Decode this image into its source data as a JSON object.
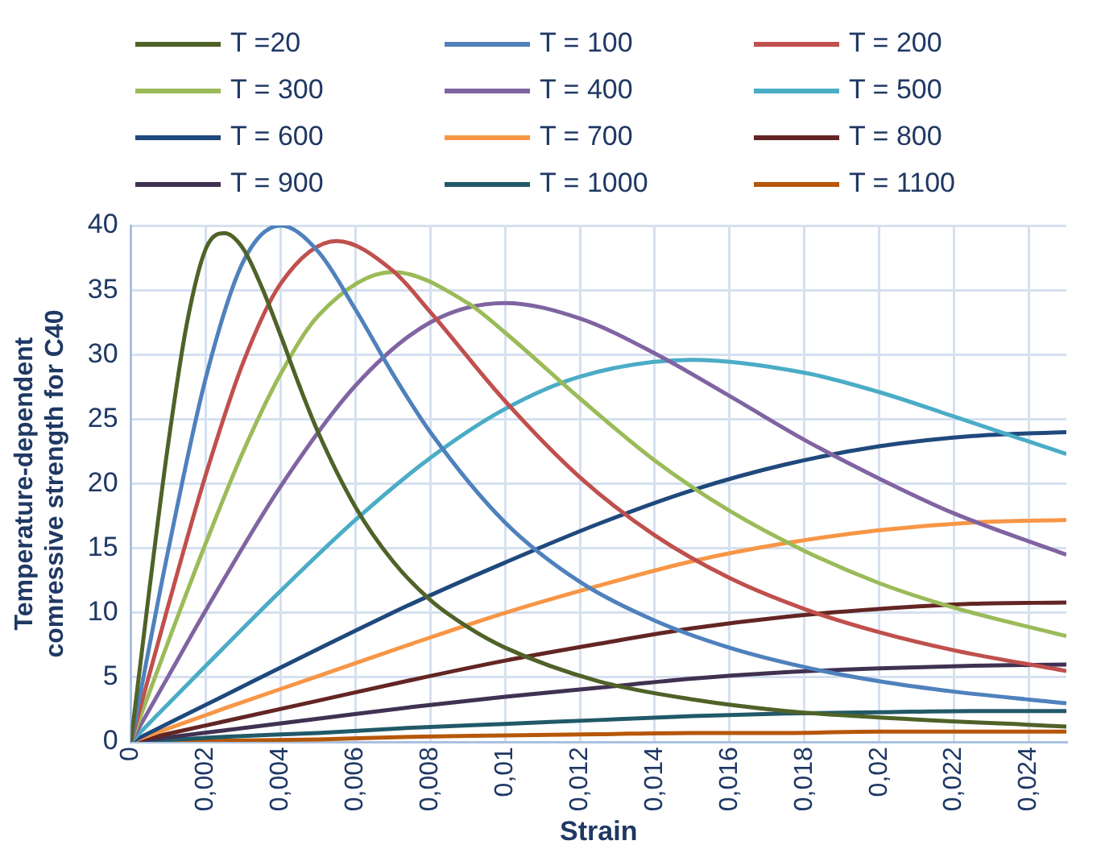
{
  "chart_data": {
    "type": "line",
    "xlabel": "Strain",
    "ylabel": "Temperature-dependent comressive strength for C40",
    "xlim": [
      0,
      0.025
    ],
    "xticks": [
      0,
      {
        "value": 0.002,
        "label": "0,002"
      },
      {
        "value": 0.004,
        "label": "0,004"
      },
      {
        "value": 0.006,
        "label": "0,006"
      },
      {
        "value": 0.008,
        "label": "0,008"
      },
      {
        "value": 0.01,
        "label": "0,01"
      },
      {
        "value": 0.012,
        "label": "0,012"
      },
      {
        "value": 0.014,
        "label": "0,014"
      },
      {
        "value": 0.016,
        "label": "0,016"
      },
      {
        "value": 0.018,
        "label": "0,018"
      },
      {
        "value": 0.02,
        "label": "0,02"
      },
      {
        "value": 0.022,
        "label": "0,022"
      },
      {
        "value": 0.024,
        "label": "0,024"
      }
    ],
    "ylim": [
      0,
      40
    ],
    "yticks": [
      0,
      5,
      10,
      15,
      20,
      25,
      30,
      35,
      40
    ],
    "grid": true,
    "legend": "top",
    "series": [
      {
        "name": "T =20",
        "color": "#4f6228",
        "x": [
          0,
          0.0005,
          0.001,
          0.0015,
          0.002,
          0.0025,
          0.003,
          0.0035,
          0.004,
          0.0045,
          0.005,
          0.006,
          0.007,
          0.008,
          0.009,
          0.01,
          0.0125,
          0.015,
          0.0175,
          0.02,
          0.025
        ],
        "values": [
          0,
          12.0,
          23.2,
          32.5,
          38.2,
          39.4,
          38.2,
          35.2,
          31.5,
          27.6,
          24.0,
          18.2,
          14.0,
          11.0,
          8.9,
          7.3,
          4.7,
          3.3,
          2.4,
          1.9,
          1.2
        ]
      },
      {
        "name": "T = 100",
        "color": "#4f81bd",
        "x": [
          0,
          0.001,
          0.002,
          0.003,
          0.004,
          0.005,
          0.006,
          0.007,
          0.008,
          0.01,
          0.012,
          0.014,
          0.016,
          0.018,
          0.02,
          0.022,
          0.025
        ],
        "values": [
          0,
          14.9,
          28.2,
          37.2,
          40,
          38.0,
          33.5,
          28.5,
          24.0,
          17.0,
          12.4,
          9.4,
          7.3,
          5.8,
          4.7,
          3.9,
          3.0
        ]
      },
      {
        "name": "T = 200",
        "color": "#c0504d",
        "x": [
          0,
          0.001,
          0.002,
          0.003,
          0.004,
          0.0055,
          0.007,
          0.008,
          0.01,
          0.012,
          0.014,
          0.016,
          0.018,
          0.02,
          0.022,
          0.025
        ],
        "values": [
          0,
          10.6,
          20.7,
          29.4,
          35.5,
          38.8,
          36.5,
          33.3,
          26.4,
          20.5,
          16.0,
          12.7,
          10.3,
          8.5,
          7.1,
          5.5
        ]
      },
      {
        "name": "T = 300",
        "color": "#9bbb59",
        "x": [
          0,
          0.001,
          0.002,
          0.003,
          0.004,
          0.005,
          0.007,
          0.009,
          0.01,
          0.012,
          0.014,
          0.016,
          0.018,
          0.02,
          0.022,
          0.025
        ],
        "values": [
          0,
          7.8,
          15.4,
          22.5,
          28.5,
          33.0,
          36.4,
          34.0,
          31.7,
          26.6,
          21.8,
          17.9,
          14.8,
          12.3,
          10.4,
          8.2
        ]
      },
      {
        "name": "T = 400",
        "color": "#8064a2",
        "x": [
          0,
          0.001,
          0.002,
          0.004,
          0.006,
          0.008,
          0.01,
          0.012,
          0.014,
          0.016,
          0.018,
          0.02,
          0.022,
          0.025
        ],
        "values": [
          0,
          5.1,
          10.2,
          19.8,
          27.6,
          32.5,
          34,
          32.8,
          30.1,
          26.8,
          23.4,
          20.4,
          17.7,
          14.5
        ]
      },
      {
        "name": "T = 500",
        "color": "#4bacc6",
        "x": [
          0,
          0.002,
          0.004,
          0.006,
          0.008,
          0.01,
          0.012,
          0.015,
          0.018,
          0.02,
          0.022,
          0.025
        ],
        "values": [
          0,
          5.9,
          11.7,
          17.2,
          22.0,
          25.8,
          28.3,
          29.6,
          28.6,
          27.1,
          25.2,
          22.3
        ]
      },
      {
        "name": "T = 600",
        "color": "#1f497d",
        "x": [
          0,
          0.0025,
          0.005,
          0.0075,
          0.01,
          0.0125,
          0.015,
          0.0175,
          0.02,
          0.0225,
          0.025
        ],
        "values": [
          0,
          3.6,
          7.2,
          10.7,
          13.9,
          16.9,
          19.5,
          21.5,
          22.9,
          23.7,
          24
        ]
      },
      {
        "name": "T = 700",
        "color": "#f79646",
        "x": [
          0,
          0.0025,
          0.005,
          0.0075,
          0.01,
          0.0125,
          0.015,
          0.0175,
          0.02,
          0.0225,
          0.025
        ],
        "values": [
          0,
          2.6,
          5.1,
          7.6,
          10.0,
          12.1,
          14.0,
          15.4,
          16.4,
          17.0,
          17.2
        ]
      },
      {
        "name": "T = 800",
        "color": "#632523",
        "x": [
          0,
          0.0025,
          0.005,
          0.0075,
          0.01,
          0.0125,
          0.015,
          0.0175,
          0.02,
          0.0225,
          0.025
        ],
        "values": [
          0,
          1.6,
          3.2,
          4.8,
          6.3,
          7.6,
          8.8,
          9.7,
          10.3,
          10.7,
          10.8
        ]
      },
      {
        "name": "T = 900",
        "color": "#403152",
        "x": [
          0,
          0.0025,
          0.005,
          0.0075,
          0.01,
          0.0125,
          0.015,
          0.0175,
          0.02,
          0.0225,
          0.025
        ],
        "values": [
          0,
          0.9,
          1.8,
          2.7,
          3.5,
          4.2,
          4.9,
          5.4,
          5.7,
          5.9,
          6
        ]
      },
      {
        "name": "T = 1000",
        "color": "#215968",
        "x": [
          0,
          0.0025,
          0.005,
          0.0075,
          0.01,
          0.0125,
          0.015,
          0.0175,
          0.02,
          0.0225,
          0.025
        ],
        "values": [
          0,
          0.4,
          0.7,
          1.1,
          1.4,
          1.7,
          2.0,
          2.2,
          2.3,
          2.4,
          2.4
        ]
      },
      {
        "name": "T = 1100",
        "color": "#b65708",
        "x": [
          0,
          0.0025,
          0.005,
          0.0075,
          0.01,
          0.0125,
          0.015,
          0.0175,
          0.02,
          0.0225,
          0.025
        ],
        "values": [
          0,
          0.1,
          0.2,
          0.4,
          0.5,
          0.6,
          0.7,
          0.7,
          0.8,
          0.8,
          0.8
        ]
      }
    ]
  }
}
